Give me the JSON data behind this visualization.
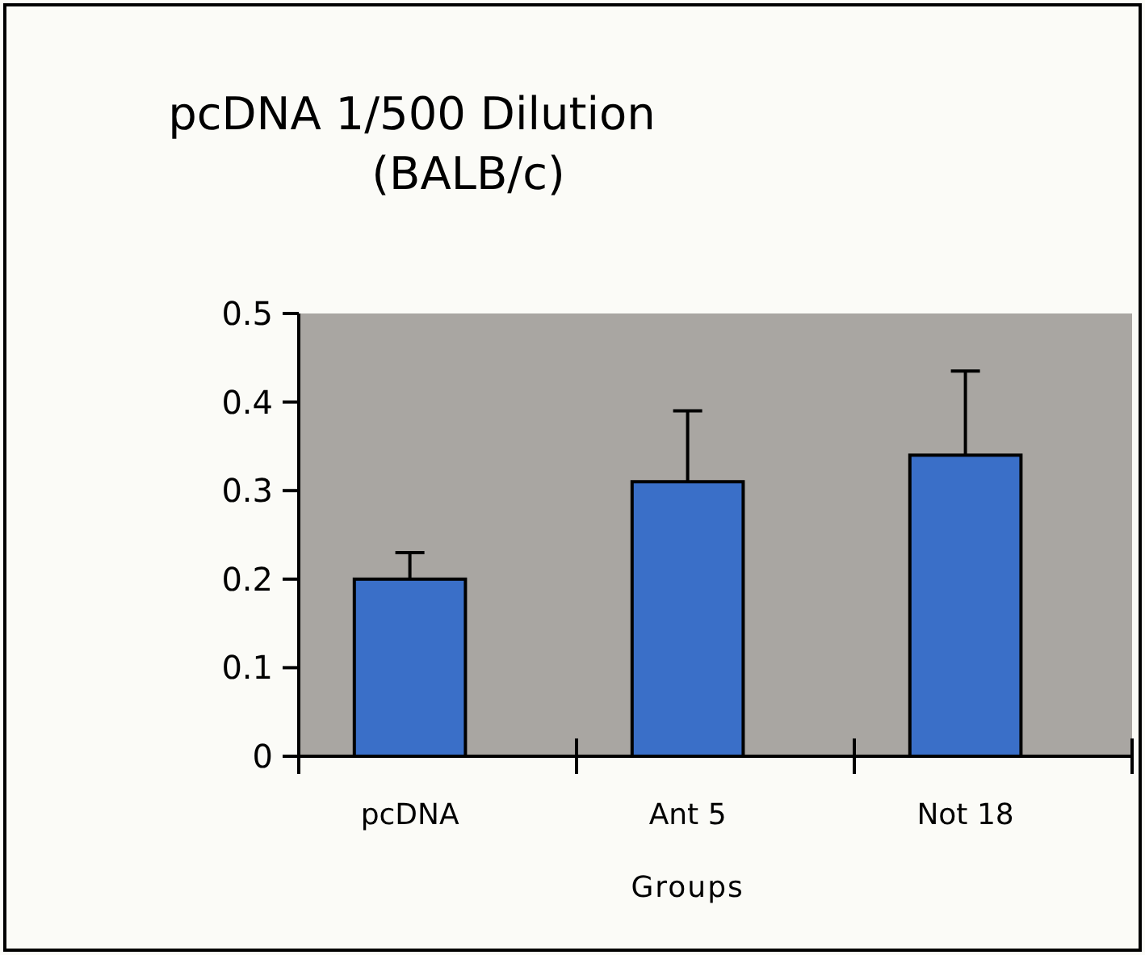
{
  "chart_data": {
    "type": "bar",
    "title": "pcDNA 1/500 Dilution\n(BALB/c)",
    "xlabel": "Groups",
    "categories": [
      "pcDNA",
      "Ant 5",
      "Not 18"
    ],
    "values": [
      0.2,
      0.31,
      0.34
    ],
    "color": "#3a6fc8",
    "errors": [
      [
        0.2,
        0.23
      ],
      [
        0.31,
        0.39
      ],
      [
        0.34,
        0.435
      ]
    ],
    "ylim": [
      0,
      0.5
    ],
    "yticks": [
      {
        "value": 0,
        "label": "0"
      },
      0.1,
      0.2,
      0.3,
      0.4,
      0.5
    ],
    "grid": false
  }
}
